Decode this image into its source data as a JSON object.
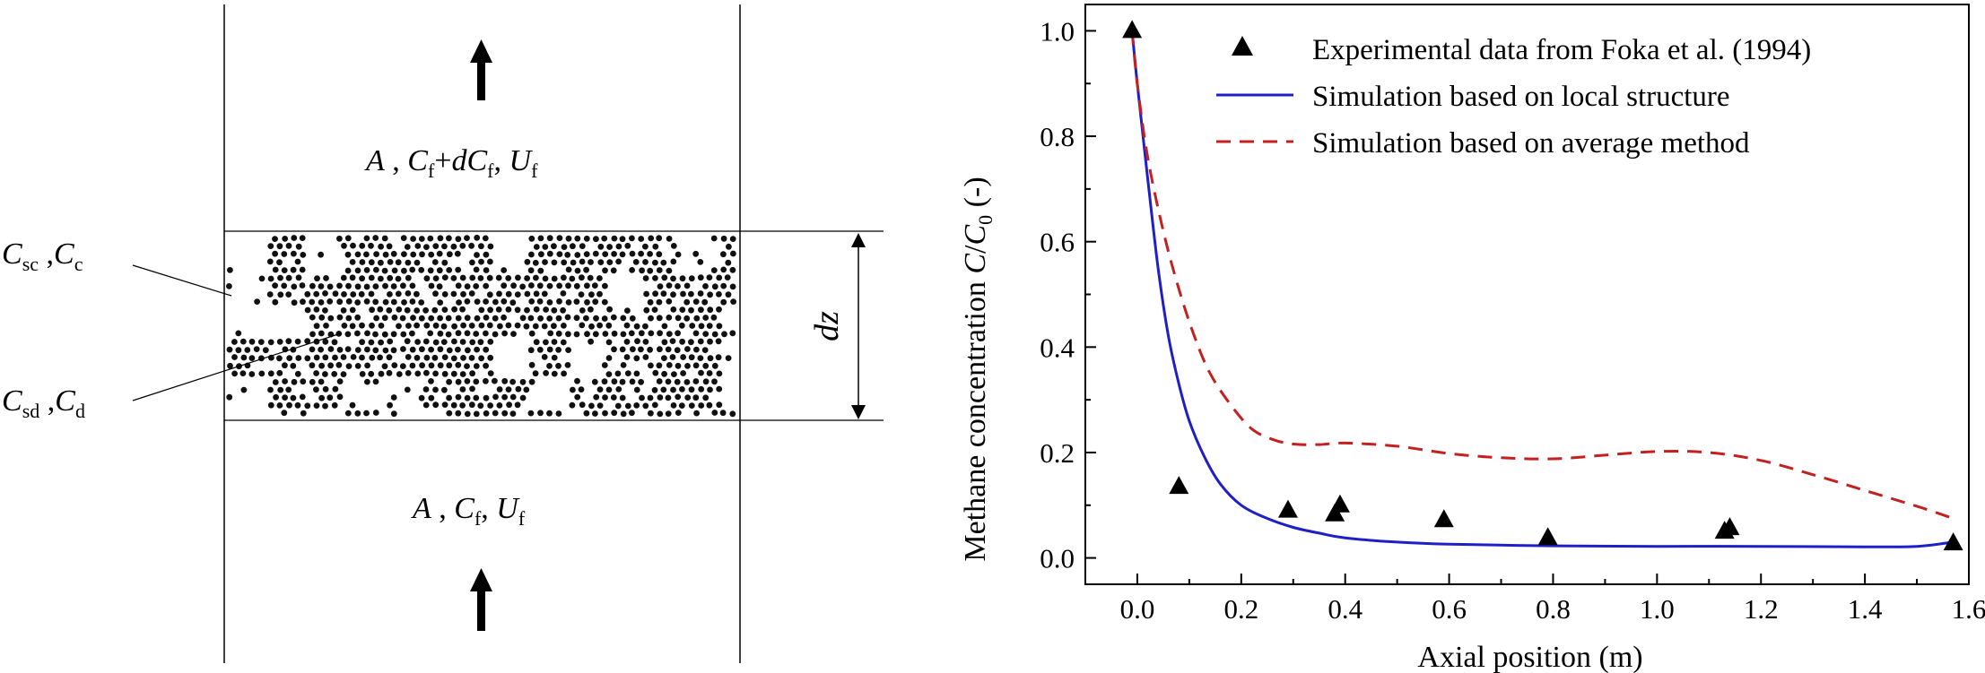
{
  "diagram": {
    "top_label": {
      "A": "A",
      "C": "C",
      "C_sub": "f",
      "plus": "+",
      "d": "d",
      "C2": "C",
      "C2_sub": "f",
      "U": "U",
      "U_sub": "f"
    },
    "bottom_label": {
      "A": "A",
      "C": "C",
      "C_sub": "f",
      "U": "U",
      "U_sub": "f"
    },
    "label_sc": {
      "C1": "C",
      "sub1": "sc",
      "C2": "C",
      "sub2": "c"
    },
    "label_sd": {
      "C1": "C",
      "sub1": "sd",
      "C2": "C",
      "sub2": "d"
    },
    "dz": {
      "d": "d",
      "z": "z"
    }
  },
  "chart_data": {
    "type": "line",
    "xlabel": "Axial position (m)",
    "ylabel_main": "Methane concentration ",
    "ylabel_C": "C",
    "ylabel_slash": "/",
    "ylabel_C0": "C",
    "ylabel_C0_sub": "0",
    "ylabel_unit": "(-)",
    "xlim": [
      -0.1,
      1.6
    ],
    "ylim": [
      -0.05,
      1.05
    ],
    "xticks": [
      0.0,
      0.2,
      0.4,
      0.6,
      0.8,
      1.0,
      1.2,
      1.4,
      1.6
    ],
    "xtick_labels": [
      "0.0",
      "0.2",
      "0.4",
      "0.6",
      "0.8",
      "1.0",
      "1.2",
      "1.4",
      "1.6"
    ],
    "yticks": [
      0.0,
      0.2,
      0.4,
      0.6,
      0.8,
      1.0
    ],
    "ytick_labels": [
      "0.0",
      "0.2",
      "0.4",
      "0.6",
      "0.8",
      "1.0"
    ],
    "legend_position": "top-right",
    "series": [
      {
        "name": "Experimental data from Foka et al. (1994)",
        "kind": "scatter",
        "marker": "triangle",
        "color": "#000000",
        "x": [
          -0.01,
          0.08,
          0.29,
          0.38,
          0.39,
          0.59,
          0.79,
          1.13,
          1.14,
          1.57
        ],
        "y": [
          1.0,
          0.135,
          0.09,
          0.083,
          0.1,
          0.072,
          0.038,
          0.05,
          0.057,
          0.028
        ]
      },
      {
        "name": "Simulation based on local structure",
        "kind": "line",
        "color": "#1f1fc8",
        "dash": "solid",
        "x": [
          -0.01,
          0.0,
          0.02,
          0.04,
          0.06,
          0.08,
          0.1,
          0.13,
          0.16,
          0.2,
          0.25,
          0.3,
          0.35,
          0.4,
          0.5,
          0.6,
          0.8,
          1.0,
          1.2,
          1.4,
          1.5,
          1.57
        ],
        "y": [
          1.0,
          0.9,
          0.72,
          0.55,
          0.42,
          0.33,
          0.26,
          0.19,
          0.14,
          0.1,
          0.075,
          0.058,
          0.047,
          0.038,
          0.03,
          0.026,
          0.023,
          0.022,
          0.022,
          0.021,
          0.022,
          0.03
        ]
      },
      {
        "name": "Simulation based on average method",
        "kind": "line",
        "color": "#c42020",
        "dash": "dashed",
        "x": [
          -0.01,
          0.0,
          0.02,
          0.05,
          0.08,
          0.11,
          0.14,
          0.18,
          0.22,
          0.26,
          0.3,
          0.35,
          0.4,
          0.5,
          0.6,
          0.7,
          0.8,
          0.9,
          1.0,
          1.1,
          1.2,
          1.3,
          1.4,
          1.5,
          1.57
        ],
        "y": [
          1.0,
          0.9,
          0.76,
          0.62,
          0.51,
          0.42,
          0.35,
          0.29,
          0.245,
          0.225,
          0.216,
          0.215,
          0.218,
          0.212,
          0.198,
          0.19,
          0.188,
          0.195,
          0.202,
          0.2,
          0.185,
          0.158,
          0.128,
          0.098,
          0.075
        ]
      }
    ]
  }
}
